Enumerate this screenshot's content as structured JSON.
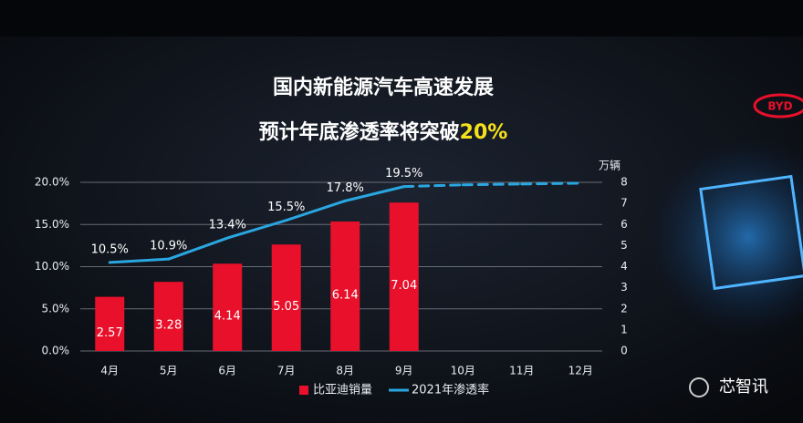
{
  "chart_data": {
    "type": "bar-line",
    "title_line1": "国内新能源汽车高速发展",
    "title_line2": "预计年底渗透率将突破",
    "title_highlight": "20%",
    "categories": [
      "4月",
      "5月",
      "6月",
      "7月",
      "8月",
      "9月",
      "10月",
      "11月",
      "12月"
    ],
    "series": [
      {
        "name": "比亚迪销量",
        "type": "bar",
        "axis": "y2",
        "color": "#e8102a",
        "values": [
          2.57,
          3.28,
          4.14,
          5.05,
          6.14,
          7.04,
          null,
          null,
          null
        ]
      },
      {
        "name": "2021年渗透率",
        "type": "line",
        "axis": "y",
        "color": "#2aa6e0",
        "values": [
          10.5,
          10.9,
          13.4,
          15.5,
          17.8,
          19.5,
          19.7,
          19.8,
          19.9
        ],
        "value_labels": [
          "10.5%",
          "10.9%",
          "13.4%",
          "15.5%",
          "17.8%",
          "19.5%",
          null,
          null,
          null
        ],
        "dashed": [
          false,
          false,
          false,
          false,
          false,
          false,
          true,
          true,
          true
        ]
      }
    ],
    "ylim": [
      0,
      20
    ],
    "yticks": [
      {
        "value": 0,
        "label": "0.0%"
      },
      {
        "value": 5,
        "label": "5.0%"
      },
      {
        "value": 10,
        "label": "10.0%"
      },
      {
        "value": 15,
        "label": "15.0%"
      },
      {
        "value": 20,
        "label": "20.0%"
      }
    ],
    "y2label": "万辆",
    "y2lim": [
      0,
      8
    ],
    "y2ticks": [
      0,
      1,
      2,
      3,
      4,
      5,
      6,
      7,
      8
    ],
    "grid": true,
    "legend": "bottom"
  },
  "logo": "BYD",
  "watermark": "芯智讯"
}
